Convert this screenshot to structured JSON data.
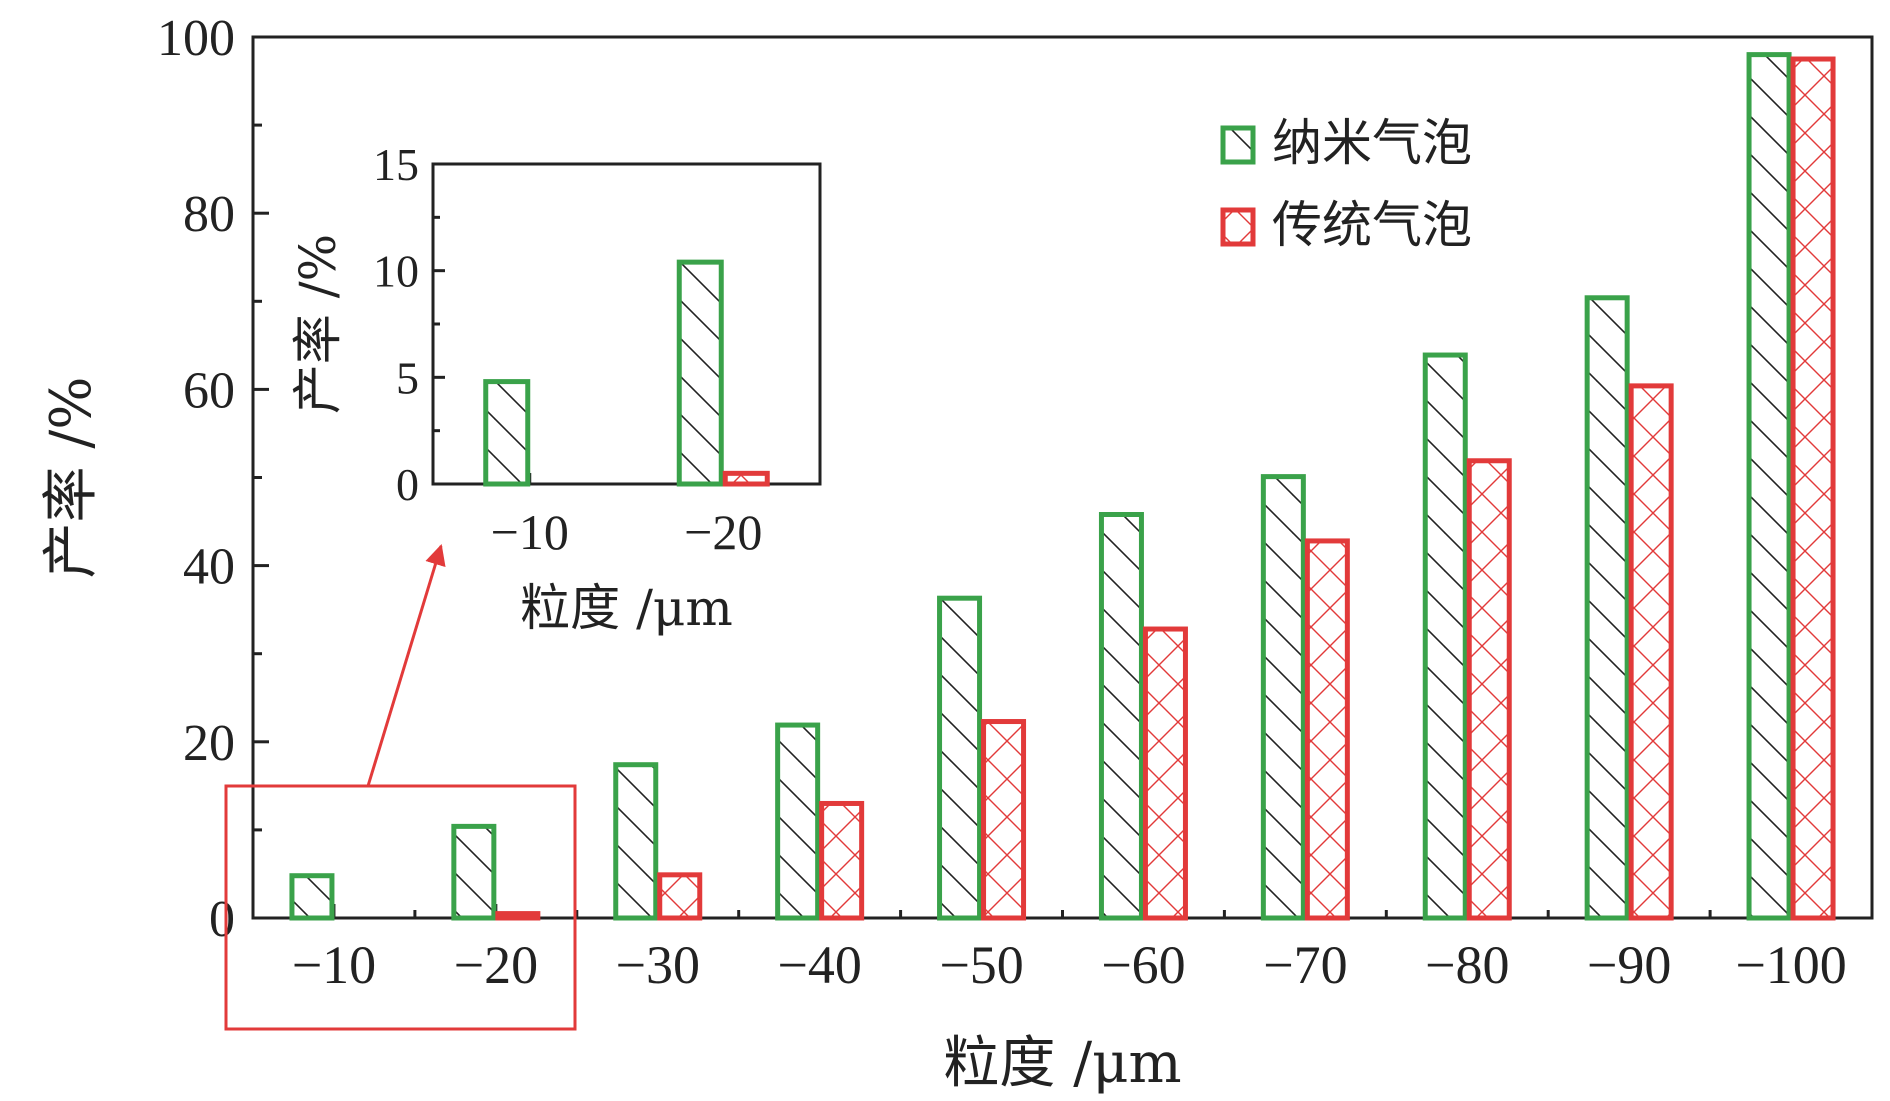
{
  "colors": {
    "nano": "#3aa24a",
    "traditional": "#e23a3a",
    "axis": "#222222",
    "highlight": "#e23a3a"
  },
  "chart_data": [
    {
      "type": "bar",
      "role": "main",
      "categories": [
        "−10",
        "−20",
        "−30",
        "−40",
        "−50",
        "−60",
        "−70",
        "−80",
        "−90",
        "−100"
      ],
      "series": [
        {
          "name": "纳米气泡",
          "color_key": "nano",
          "pattern": "diagonal-hatch",
          "values": [
            4.8,
            10.4,
            17.4,
            21.9,
            36.3,
            45.8,
            50.1,
            63.9,
            70.4,
            98.0
          ]
        },
        {
          "name": "传统气泡",
          "color_key": "traditional",
          "pattern": "cross-hatch",
          "values": [
            0,
            0.5,
            4.9,
            13.0,
            22.3,
            32.8,
            42.8,
            51.9,
            60.4,
            97.5
          ]
        }
      ],
      "ylim": [
        0,
        100
      ],
      "yticks": [
        0,
        20,
        40,
        60,
        80,
        100
      ],
      "yticks_labels": [
        "0",
        "20",
        "40",
        "60",
        "80",
        "100"
      ],
      "xlabel": "粒度 /μm",
      "ylabel": "产率 /%",
      "legend_position": "top-right",
      "highlight": {
        "categories": [
          "−10",
          "−20"
        ],
        "note": "arrow to inset"
      }
    },
    {
      "type": "bar",
      "role": "inset",
      "categories": [
        "−10",
        "−20"
      ],
      "series": [
        {
          "name": "纳米气泡",
          "color_key": "nano",
          "pattern": "diagonal-hatch",
          "values": [
            4.8,
            10.4
          ]
        },
        {
          "name": "传统气泡",
          "color_key": "traditional",
          "pattern": "cross-hatch",
          "values": [
            0,
            0.5
          ]
        }
      ],
      "ylim": [
        0,
        15
      ],
      "yticks": [
        0,
        5,
        10,
        15
      ],
      "yticks_labels": [
        "0",
        "5",
        "10",
        "15"
      ],
      "xlabel": "粒度 /μm",
      "ylabel": "产率 /%"
    }
  ]
}
